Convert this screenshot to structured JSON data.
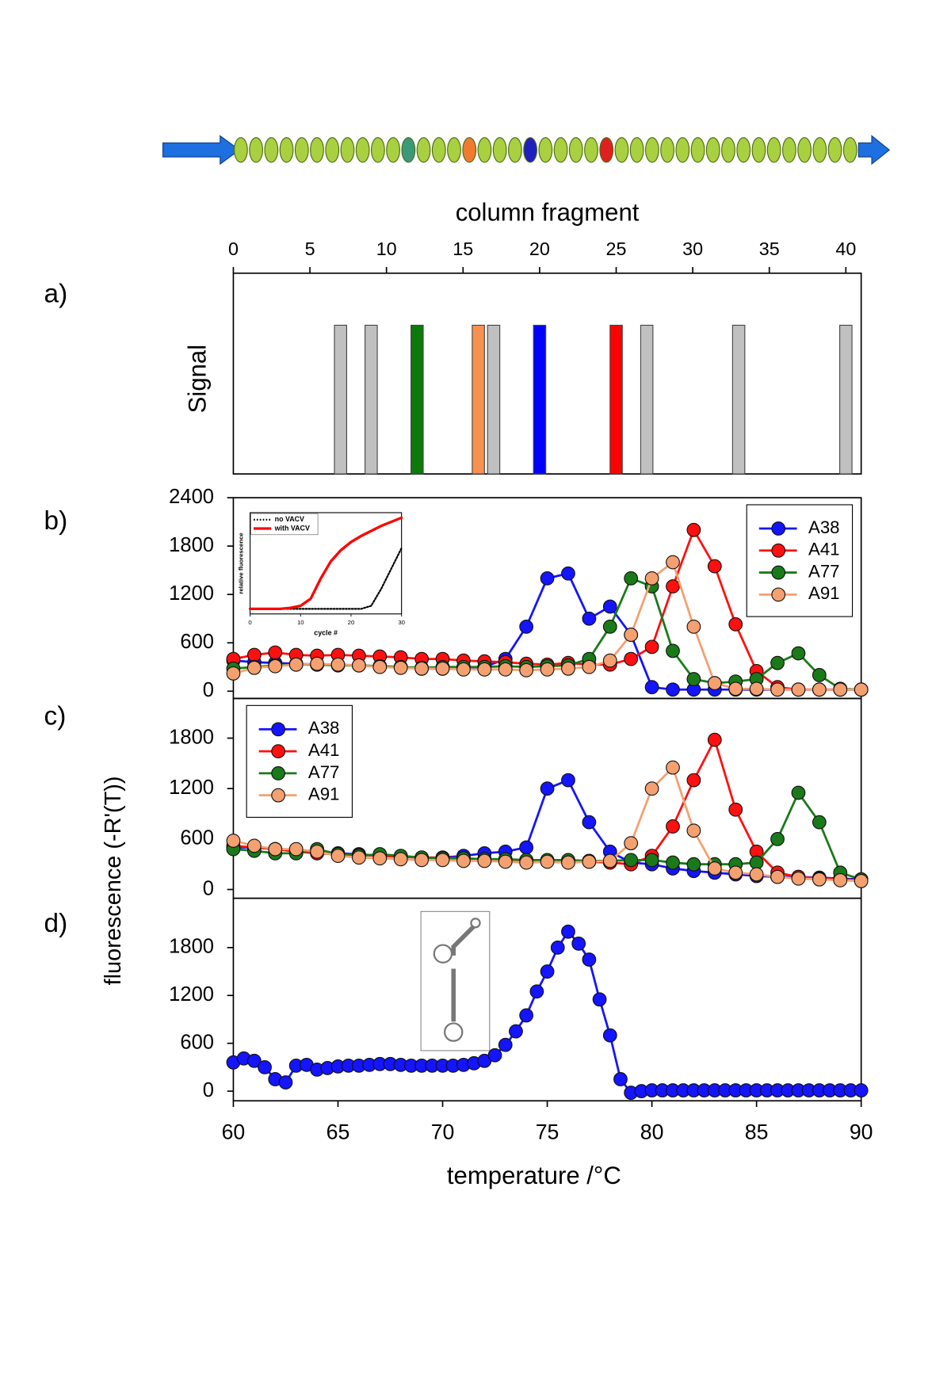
{
  "chart_data": [
    {
      "type": "bar",
      "panel_label": "a)",
      "xlabel": "column fragment",
      "ylabel": "Signal",
      "xlim": [
        0,
        41
      ],
      "xticks": [
        0,
        5,
        10,
        15,
        20,
        25,
        30,
        35,
        40
      ],
      "ylim": [
        0,
        1.35
      ],
      "x": [
        7,
        9,
        12,
        16,
        17,
        20,
        25,
        27,
        33,
        40
      ],
      "values": [
        1,
        1,
        1,
        1,
        1,
        1,
        1,
        1,
        1,
        1
      ],
      "colors": [
        "#c0c0c0",
        "#c0c0c0",
        "#0b7a0b",
        "#f79150",
        "#c0c0c0",
        "#0000ff",
        "#ff0000",
        "#c0c0c0",
        "#c0c0c0",
        "#c0c0c0"
      ]
    },
    {
      "type": "line",
      "panel_label": "b)",
      "xlim": [
        60,
        90
      ],
      "ylim": [
        -90,
        2400
      ],
      "yticks": [
        0,
        600,
        1200,
        1800,
        2400
      ],
      "legend": "upper right",
      "x": [
        60,
        61,
        62,
        63,
        64,
        65,
        66,
        67,
        68,
        69,
        70,
        71,
        72,
        73,
        74,
        75,
        76,
        77,
        78,
        79,
        80,
        81,
        82,
        83,
        84,
        85,
        86,
        87,
        88,
        89,
        90
      ],
      "series": [
        {
          "name": "A38",
          "color": "#1414ff",
          "values": [
            380,
            360,
            350,
            340,
            330,
            330,
            320,
            310,
            300,
            280,
            280,
            290,
            300,
            400,
            800,
            1400,
            1460,
            900,
            1050,
            700,
            50,
            20,
            20,
            20,
            20,
            20,
            20,
            20,
            20,
            20,
            20
          ]
        },
        {
          "name": "A41",
          "color": "#ff1010",
          "values": [
            400,
            450,
            480,
            450,
            440,
            450,
            440,
            430,
            420,
            400,
            400,
            380,
            370,
            360,
            340,
            330,
            350,
            330,
            330,
            400,
            550,
            1300,
            2000,
            1550,
            830,
            250,
            50,
            20,
            20,
            20,
            20
          ]
        },
        {
          "name": "A77",
          "color": "#1a7a1a",
          "values": [
            280,
            300,
            320,
            330,
            330,
            320,
            320,
            310,
            300,
            290,
            300,
            300,
            300,
            310,
            300,
            310,
            320,
            400,
            800,
            1400,
            1300,
            500,
            150,
            100,
            120,
            150,
            350,
            470,
            200,
            30,
            20
          ]
        },
        {
          "name": "A91",
          "color": "#f4a070",
          "values": [
            220,
            290,
            310,
            330,
            340,
            330,
            320,
            300,
            290,
            280,
            280,
            270,
            270,
            270,
            260,
            270,
            280,
            300,
            380,
            700,
            1400,
            1600,
            800,
            100,
            30,
            30,
            20,
            20,
            20,
            20,
            20
          ]
        }
      ]
    },
    {
      "type": "line",
      "xlabel": "cycle #",
      "ylabel": "relative fluorescence",
      "xlim": [
        0,
        30
      ],
      "xticks": [
        0,
        10,
        20,
        30
      ],
      "ylim": [
        0,
        1
      ],
      "x": [
        0,
        2,
        4,
        6,
        8,
        10,
        12,
        14,
        16,
        18,
        20,
        22,
        24,
        26,
        28,
        30
      ],
      "series": [
        {
          "name": "no VACV",
          "color": "#000000",
          "values": [
            0.05,
            0.05,
            0.05,
            0.05,
            0.05,
            0.05,
            0.05,
            0.05,
            0.05,
            0.05,
            0.05,
            0.05,
            0.08,
            0.25,
            0.45,
            0.65
          ]
        },
        {
          "name": "with VACV",
          "color": "#ff0000",
          "values": [
            0.05,
            0.05,
            0.05,
            0.05,
            0.06,
            0.08,
            0.15,
            0.35,
            0.52,
            0.63,
            0.71,
            0.77,
            0.82,
            0.87,
            0.91,
            0.95
          ]
        }
      ]
    },
    {
      "type": "line",
      "panel_label": "c)",
      "ylabel": "fluorescence (-R'(T))",
      "xlim": [
        60,
        90
      ],
      "ylim": [
        -105,
        2272
      ],
      "yticks": [
        0,
        600,
        1200,
        1800
      ],
      "x": [
        60,
        61,
        62,
        63,
        64,
        65,
        66,
        67,
        68,
        69,
        70,
        71,
        72,
        73,
        74,
        75,
        76,
        77,
        78,
        79,
        80,
        81,
        82,
        83,
        84,
        85,
        86,
        87,
        88,
        89,
        90
      ],
      "series": [
        {
          "name": "A38",
          "color": "#1414ff",
          "values": [
            500,
            500,
            480,
            470,
            450,
            430,
            420,
            400,
            390,
            380,
            380,
            400,
            430,
            450,
            500,
            1200,
            1300,
            800,
            450,
            320,
            300,
            250,
            220,
            200,
            180,
            160,
            150,
            150,
            140,
            130,
            120
          ]
        },
        {
          "name": "A41",
          "color": "#ff1010",
          "values": [
            520,
            500,
            480,
            450,
            430,
            420,
            410,
            400,
            390,
            380,
            380,
            370,
            360,
            350,
            350,
            340,
            330,
            330,
            320,
            300,
            400,
            750,
            1300,
            1780,
            950,
            450,
            200,
            150,
            130,
            120,
            110
          ]
        },
        {
          "name": "A77",
          "color": "#1a7a1a",
          "values": [
            480,
            460,
            430,
            430,
            480,
            420,
            400,
            420,
            400,
            380,
            370,
            370,
            360,
            360,
            350,
            350,
            350,
            340,
            340,
            350,
            350,
            320,
            300,
            300,
            300,
            320,
            600,
            1150,
            800,
            200,
            120
          ]
        },
        {
          "name": "A91",
          "color": "#f4a070",
          "values": [
            580,
            520,
            480,
            480,
            450,
            400,
            380,
            370,
            360,
            350,
            350,
            340,
            340,
            330,
            320,
            330,
            320,
            330,
            340,
            550,
            1200,
            1450,
            700,
            250,
            200,
            180,
            150,
            130,
            120,
            110,
            100
          ]
        }
      ]
    },
    {
      "type": "line",
      "panel_label": "d)",
      "xlabel": "temperature /°C",
      "xlim": [
        60,
        90
      ],
      "xticks": [
        60,
        65,
        70,
        75,
        80,
        85,
        90
      ],
      "ylim": [
        -121,
        2418
      ],
      "yticks": [
        0,
        600,
        1200,
        1800
      ],
      "x": [
        60,
        60.5,
        61,
        61.5,
        62,
        62.5,
        63,
        63.5,
        64,
        64.5,
        65,
        65.5,
        66,
        66.5,
        67,
        67.5,
        68,
        68.5,
        69,
        69.5,
        70,
        70.5,
        71,
        71.5,
        72,
        72.5,
        73,
        73.5,
        74,
        74.5,
        75,
        75.5,
        76,
        76.5,
        77,
        77.5,
        78,
        78.5,
        79,
        79.5,
        80,
        80.5,
        81,
        81.5,
        82,
        82.5,
        83,
        83.5,
        84,
        84.5,
        85,
        85.5,
        86,
        86.5,
        87,
        87.5,
        88,
        88.5,
        89,
        89.5,
        90
      ],
      "series": [
        {
          "color": "#1414ff",
          "values": [
            360,
            410,
            380,
            300,
            150,
            110,
            320,
            330,
            270,
            290,
            310,
            320,
            320,
            330,
            340,
            340,
            330,
            320,
            320,
            320,
            320,
            320,
            330,
            350,
            380,
            450,
            580,
            750,
            950,
            1250,
            1500,
            1800,
            2000,
            1850,
            1650,
            1150,
            700,
            150,
            -20,
            0,
            10,
            10,
            10,
            10,
            10,
            10,
            10,
            10,
            10,
            10,
            10,
            10,
            10,
            10,
            10,
            10,
            10,
            10,
            10,
            10,
            10
          ]
        }
      ]
    }
  ]
}
